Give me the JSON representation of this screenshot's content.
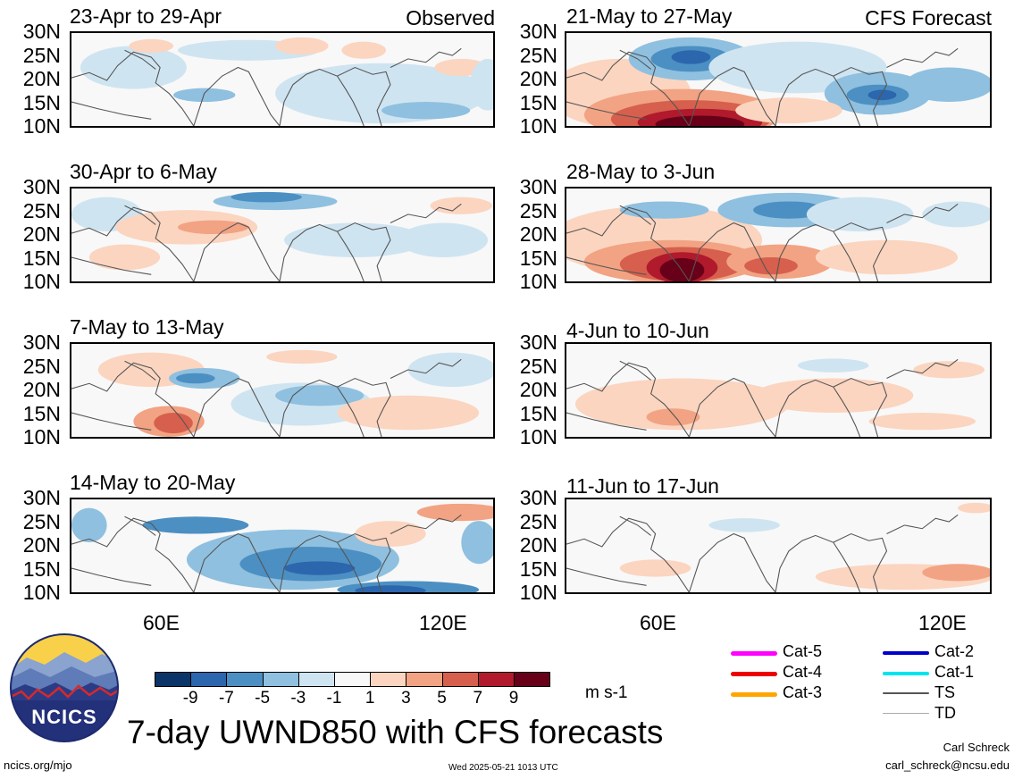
{
  "panel_headers": {
    "observed": "Observed",
    "forecast": "CFS Forecast"
  },
  "lat_labels": [
    "30N",
    "25N",
    "20N",
    "15N",
    "10N"
  ],
  "lon_labels": [
    "60E",
    "120E"
  ],
  "chart_data": {
    "type": "heatmap",
    "variable": "UWND850",
    "title": "7-day UWND850 with CFS forecasts",
    "units": "m s-1",
    "lat_range": [
      10,
      30
    ],
    "lon_range": [
      40,
      130
    ],
    "colorbar": {
      "ticks": [
        "-9",
        "-7",
        "-5",
        "-3",
        "-1",
        "1",
        "3",
        "5",
        "7",
        "9"
      ],
      "colors": [
        "#0b3468",
        "#2c66ad",
        "#4c8fc3",
        "#8fc0df",
        "#cfe4f1",
        "#f8f8f8",
        "#fbd5c0",
        "#f2a383",
        "#d6604d",
        "#b01a2c",
        "#670018"
      ]
    },
    "panels": [
      {
        "id": "obs-1",
        "title": "23-Apr to 29-Apr",
        "type": "observed"
      },
      {
        "id": "obs-2",
        "title": "30-Apr to 6-May",
        "type": "observed"
      },
      {
        "id": "obs-3",
        "title": "7-May to 13-May",
        "type": "observed"
      },
      {
        "id": "obs-4",
        "title": "14-May to 20-May",
        "type": "observed"
      },
      {
        "id": "fc-1",
        "title": "21-May to 27-May",
        "type": "forecast"
      },
      {
        "id": "fc-2",
        "title": "28-May to 3-Jun",
        "type": "forecast"
      },
      {
        "id": "fc-3",
        "title": "4-Jun to 10-Jun",
        "type": "forecast"
      },
      {
        "id": "fc-4",
        "title": "11-Jun to 17-Jun",
        "type": "forecast"
      }
    ]
  },
  "legend": [
    {
      "label": "Cat-5",
      "color": "#ff00ff"
    },
    {
      "label": "Cat-4",
      "color": "#ee0000"
    },
    {
      "label": "Cat-3",
      "color": "#ffa500"
    },
    {
      "label": "Cat-2",
      "color": "#0000cd"
    },
    {
      "label": "Cat-1",
      "color": "#00e5ee"
    },
    {
      "label": "TS",
      "color": "#555555"
    },
    {
      "label": "TD",
      "color": "#aaaaaa"
    }
  ],
  "logo": {
    "text": "NCICS"
  },
  "footer": {
    "site": "ncics.org/mjo",
    "timestamp": "Wed 2025-05-21 1013 UTC",
    "author": "Carl Schreck",
    "email": "carl_schreck@ncsu.edu"
  }
}
